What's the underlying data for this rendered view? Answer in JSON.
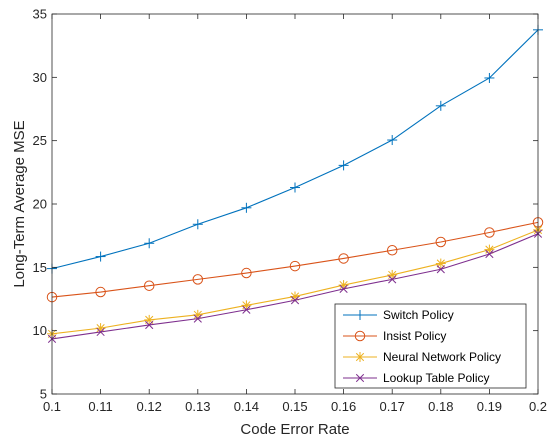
{
  "chart_data": {
    "type": "line",
    "title": "",
    "xlabel": "Code Error Rate",
    "ylabel": "Long-Term Average MSE",
    "xlim": [
      0.1,
      0.2
    ],
    "ylim": [
      5,
      35
    ],
    "x": [
      0.1,
      0.11,
      0.12,
      0.13,
      0.14,
      0.15,
      0.16,
      0.17,
      0.18,
      0.19,
      0.2
    ],
    "x_ticks": [
      "0.1",
      "0.11",
      "0.12",
      "0.13",
      "0.14",
      "0.15",
      "0.16",
      "0.17",
      "0.18",
      "0.19",
      "0.2"
    ],
    "y_ticks": [
      "5",
      "10",
      "15",
      "20",
      "25",
      "30",
      "35"
    ],
    "grid": false,
    "legend_position": "bottom-right",
    "series": [
      {
        "name": "Switch Policy",
        "color": "#0072BD",
        "marker": "plus",
        "values": [
          14.9,
          15.85,
          16.9,
          18.4,
          19.7,
          21.3,
          23.05,
          25.05,
          27.75,
          29.95,
          33.75
        ]
      },
      {
        "name": "Insist Policy",
        "color": "#D95319",
        "marker": "circle",
        "values": [
          12.65,
          13.05,
          13.55,
          14.05,
          14.55,
          15.1,
          15.7,
          16.35,
          17.0,
          17.75,
          18.55
        ]
      },
      {
        "name": "Neural Network Policy",
        "color": "#EDB120",
        "marker": "asterisk",
        "values": [
          9.75,
          10.2,
          10.85,
          11.25,
          12.0,
          12.7,
          13.6,
          14.4,
          15.3,
          16.4,
          17.95
        ]
      },
      {
        "name": "Lookup Table Policy",
        "color": "#7E2F8E",
        "marker": "x",
        "values": [
          9.35,
          9.9,
          10.45,
          10.95,
          11.65,
          12.4,
          13.3,
          14.05,
          14.85,
          16.05,
          17.65
        ]
      }
    ]
  }
}
